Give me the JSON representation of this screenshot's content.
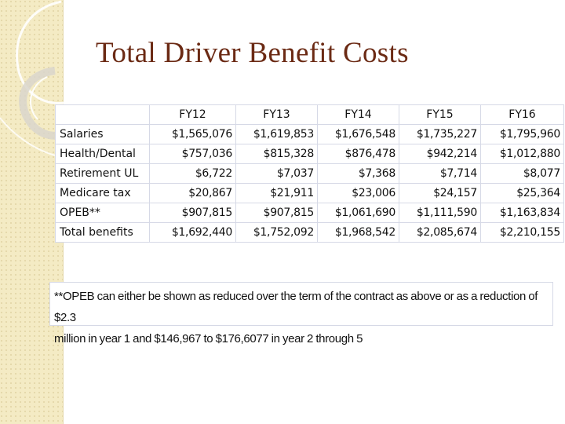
{
  "slide": {
    "title": "Total Driver Benefit Costs"
  },
  "table": {
    "columns": [
      "FY12",
      "FY13",
      "FY14",
      "FY15",
      "FY16"
    ],
    "rows": [
      {
        "label": "Salaries",
        "values": [
          "$1,565,076",
          "$1,619,853",
          "$1,676,548",
          "$1,735,227",
          "$1,795,960"
        ]
      },
      {
        "label": "Health/Dental",
        "values": [
          "$757,036",
          "$815,328",
          "$876,478",
          "$942,214",
          "$1,012,880"
        ]
      },
      {
        "label": "Retirement UL",
        "values": [
          "$6,722",
          "$7,037",
          "$7,368",
          "$7,714",
          "$8,077"
        ]
      },
      {
        "label": "Medicare tax",
        "values": [
          "$20,867",
          "$21,911",
          "$23,006",
          "$24,157",
          "$25,364"
        ]
      },
      {
        "label": "OPEB**",
        "values": [
          "$907,815",
          "$907,815",
          "$1,061,690",
          "$1,111,590",
          "$1,163,834"
        ]
      },
      {
        "label": "Total benefits",
        "values": [
          "$1,692,440",
          "$1,752,092",
          "$1,968,542",
          "$2,085,674",
          "$2,210,155"
        ]
      }
    ]
  },
  "note": {
    "line1": "**OPEB can either be shown as reduced over the term of the contract as above or as a reduction of $2.3",
    "line2": "million in year 1 and $146,967 to $176,6077 in year 2 through 5"
  },
  "colors": {
    "title": "#6b2a14",
    "side_band": "#f4ebc4",
    "border": "#d6d9e6"
  }
}
